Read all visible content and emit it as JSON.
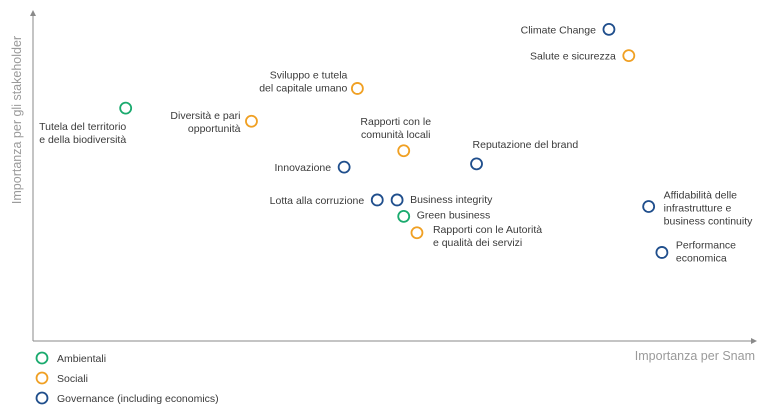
{
  "chart_data": {
    "type": "scatter",
    "xlabel": "Importanza per Snam",
    "ylabel": "Importanza per gli stakeholder",
    "grid": false,
    "legend_position": "bottom-left",
    "categories": [
      {
        "key": "amb",
        "name": "Ambientali",
        "color": "#1aaa6e"
      },
      {
        "key": "soc",
        "name": "Sociali",
        "color": "#f0a023"
      },
      {
        "key": "gov",
        "name": "Governance (including economics)",
        "color": "#1f4e8c"
      }
    ],
    "points": [
      {
        "x": 0.87,
        "y": 0.95,
        "cat": "gov",
        "label": [
          "Climate Change"
        ]
      },
      {
        "x": 0.9,
        "y": 0.87,
        "cat": "soc",
        "label": [
          "Salute e sicurezza"
        ]
      },
      {
        "x": 0.49,
        "y": 0.77,
        "cat": "soc",
        "label": [
          "Sviluppo e tutela",
          "del capitale umano"
        ]
      },
      {
        "x": 0.14,
        "y": 0.71,
        "cat": "amb",
        "label": [
          "Tutela del territorio",
          "e della biodiversità"
        ]
      },
      {
        "x": 0.33,
        "y": 0.67,
        "cat": "soc",
        "label": [
          "Diversità e pari",
          "opportunità"
        ]
      },
      {
        "x": 0.56,
        "y": 0.58,
        "cat": "soc",
        "label": [
          "Rapporti con le",
          "comunità locali"
        ]
      },
      {
        "x": 0.67,
        "y": 0.54,
        "cat": "gov",
        "label": [
          "Reputazione del brand"
        ]
      },
      {
        "x": 0.47,
        "y": 0.53,
        "cat": "gov",
        "label": [
          "Innovazione"
        ]
      },
      {
        "x": 0.52,
        "y": 0.43,
        "cat": "gov",
        "label": [
          "Lotta alla corruzione"
        ]
      },
      {
        "x": 0.55,
        "y": 0.43,
        "cat": "gov",
        "label": [
          "Business integrity"
        ]
      },
      {
        "x": 0.56,
        "y": 0.38,
        "cat": "amb",
        "label": [
          "Green business"
        ]
      },
      {
        "x": 0.58,
        "y": 0.33,
        "cat": "soc",
        "label": [
          "Rapporti con le Autorità",
          "e qualità dei servizi"
        ]
      },
      {
        "x": 0.93,
        "y": 0.41,
        "cat": "gov",
        "label": [
          "Affidabilità delle",
          "infrastrutture e",
          "business continuity"
        ]
      },
      {
        "x": 0.95,
        "y": 0.27,
        "cat": "gov",
        "label": [
          "Performance",
          "economica"
        ]
      }
    ]
  }
}
